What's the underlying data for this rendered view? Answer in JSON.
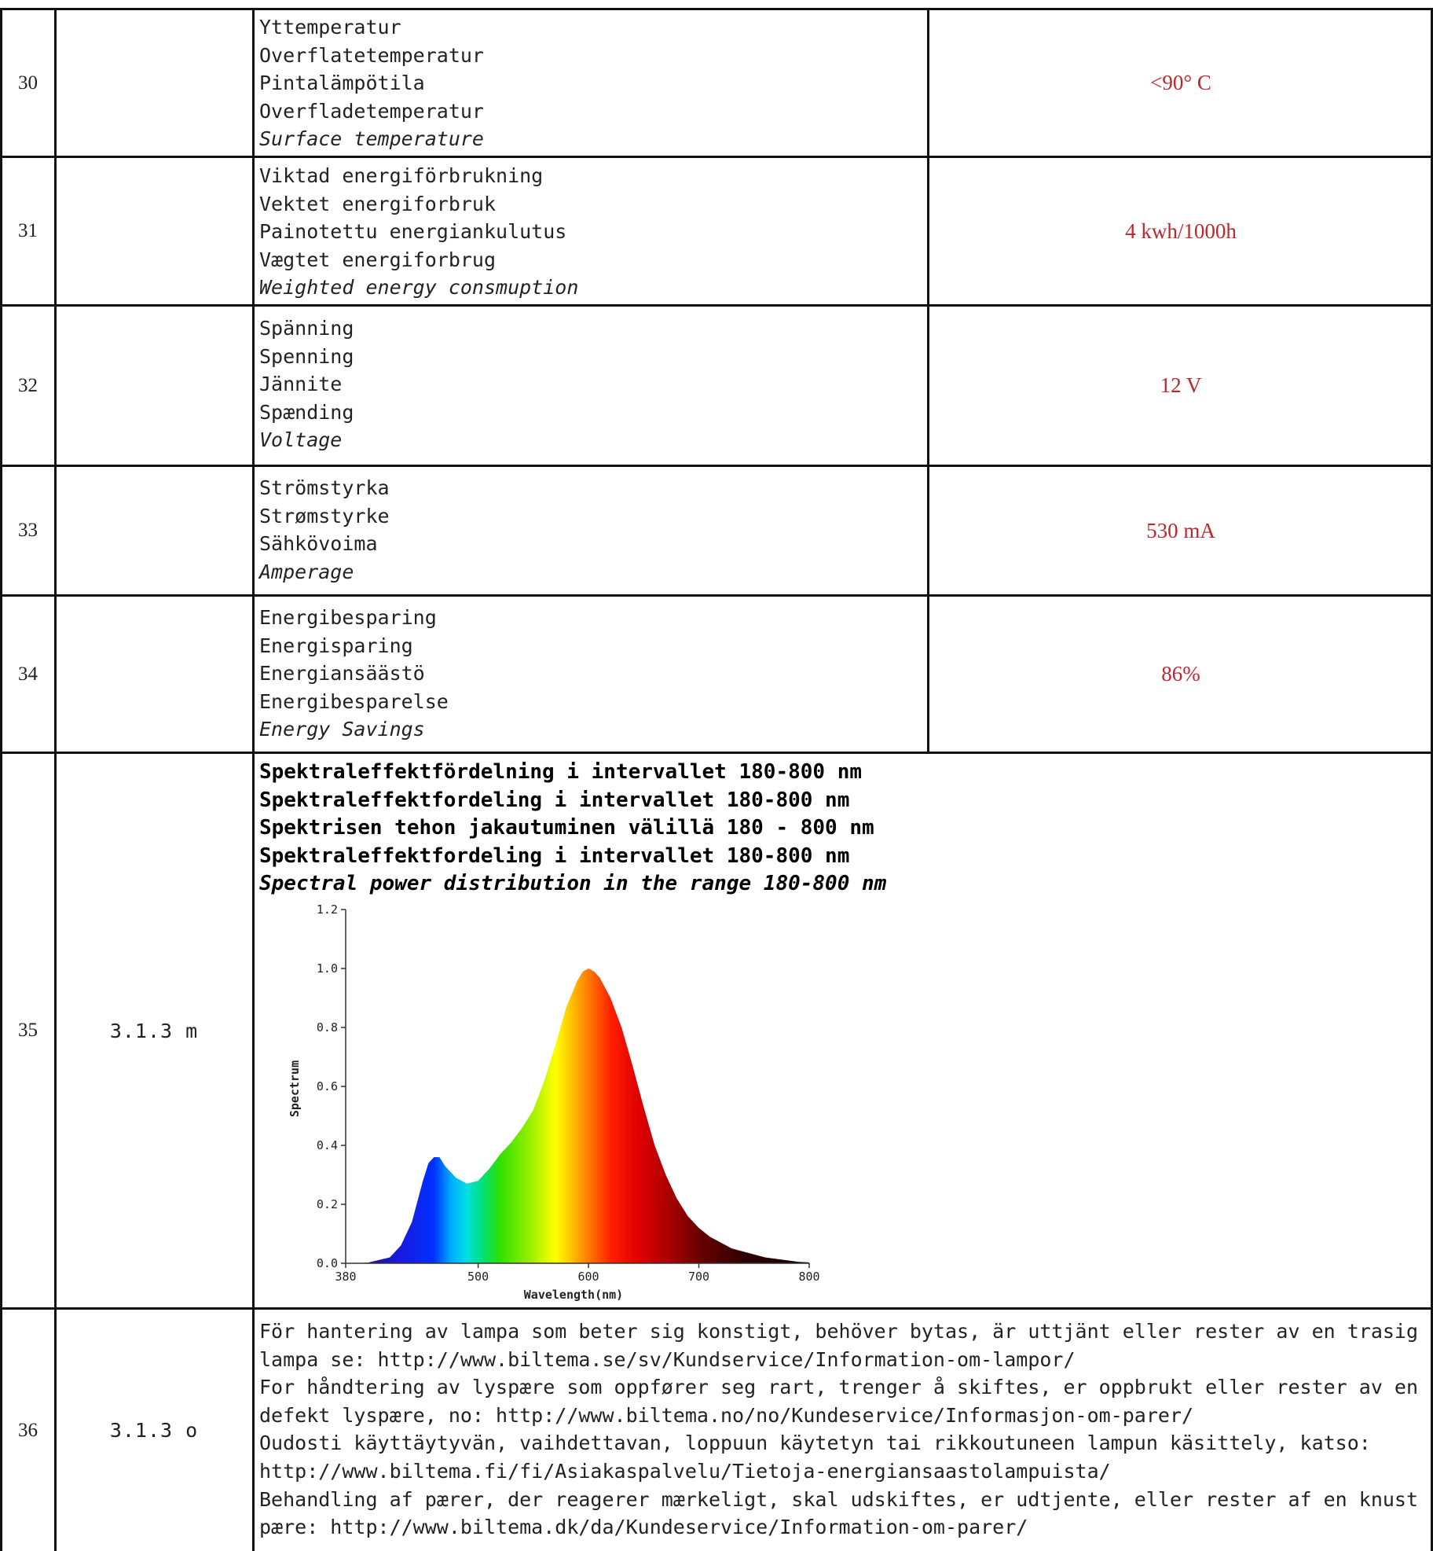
{
  "rows": [
    {
      "number": "30",
      "reference": "",
      "labels": [
        "Yttemperatur",
        "Overflatetemperatur",
        "Pintalämpötila",
        "Overfladetemperatur"
      ],
      "label_en": "Surface temperature",
      "value": "<90° C"
    },
    {
      "number": "31",
      "reference": "",
      "labels": [
        "Viktad energiförbrukning",
        "Vektet energiforbruk",
        "Painotettu energiankulutus",
        "Vægtet energiforbrug"
      ],
      "label_en": "Weighted energy consmuption",
      "value": "4 kwh/1000h"
    },
    {
      "number": "32",
      "reference": "",
      "labels": [
        "Spänning",
        "Spenning",
        "Jännite",
        "Spænding"
      ],
      "label_en": "Voltage",
      "value": "12 V"
    },
    {
      "number": "33",
      "reference": "",
      "labels": [
        "Strömstyrka",
        "Strømstyrke",
        "Sähkövoima"
      ],
      "label_en": "Amperage",
      "value": "530 mA"
    },
    {
      "number": "34",
      "reference": "",
      "labels": [
        "Energibesparing",
        "Energisparing",
        "Energiansäästö",
        "Energibesparelse"
      ],
      "label_en": "Energy Savings",
      "value": "86%"
    }
  ],
  "spectral_row": {
    "number": "35",
    "reference": "3.1.3 m",
    "headings": [
      "Spektraleffektfördelning i intervallet 180-800 nm",
      "Spektraleffektfordeling i intervallet 180-800 nm",
      "Spektrisen tehon jakautuminen välillä 180 - 800 nm",
      "Spektraleffektfordeling i intervallet 180-800 nm"
    ],
    "heading_en": "Spectral power distribution in the range 180-800 nm"
  },
  "disposal_row": {
    "number": "36",
    "reference": "3.1.3 o",
    "lines": [
      "För hantering av lampa som beter sig konstigt, behöver bytas, är uttjänt eller rester av en trasig",
      "lampa se: http://www.biltema.se/sv/Kundservice/Information-om-lampor/",
      "For håndtering av lyspære som oppfører seg rart, trenger å skiftes, er oppbrukt eller rester av en",
      "defekt lyspære, no: http://www.biltema.no/no/Kundeservice/Informasjon-om-parer/",
      "Oudosti käyttäytyvän, vaihdettavan, loppuun käytetyn tai rikkoutuneen lampun käsittely, katso:",
      "http://www.biltema.fi/fi/Asiakaspalvelu/Tietoja-energiansaastolampuista/",
      "Behandling af pærer, der reagerer mærkeligt, skal udskiftes, er udtjente, eller rester af en knust",
      "pære:  http://www.biltema.dk/da/Kundeservice/Information-om-parer/"
    ]
  },
  "colors": {
    "value_text": "#c0262b",
    "grid_line": "#111111"
  },
  "chart_data": {
    "type": "area",
    "xlabel": "Wavelength(nm)",
    "ylabel": "Spectrum",
    "xlim": [
      380,
      800
    ],
    "ylim": [
      0,
      1.2
    ],
    "x_ticks": [
      380,
      500,
      600,
      700,
      800
    ],
    "y_ticks": [
      0.0,
      0.2,
      0.4,
      0.6,
      0.8,
      1.0,
      1.2
    ],
    "x_tick_labels": [
      "380",
      "500",
      "600",
      "700",
      "800"
    ],
    "y_tick_labels": [
      "0.0",
      "0.2",
      "0.4",
      "0.6",
      "0.8",
      "1.0",
      "1.2"
    ],
    "fill": "wavelength-rainbow gradient",
    "grid": false,
    "x": [
      380,
      400,
      420,
      430,
      440,
      450,
      455,
      460,
      465,
      470,
      480,
      490,
      500,
      510,
      520,
      530,
      540,
      550,
      560,
      570,
      580,
      590,
      595,
      600,
      605,
      610,
      620,
      630,
      640,
      650,
      660,
      670,
      680,
      690,
      700,
      710,
      720,
      730,
      740,
      750,
      760,
      770,
      780,
      790,
      800
    ],
    "y": [
      0.0,
      0.002,
      0.02,
      0.06,
      0.14,
      0.28,
      0.34,
      0.36,
      0.36,
      0.33,
      0.29,
      0.27,
      0.28,
      0.32,
      0.37,
      0.41,
      0.46,
      0.52,
      0.62,
      0.74,
      0.87,
      0.96,
      0.99,
      1.0,
      0.99,
      0.97,
      0.9,
      0.8,
      0.67,
      0.53,
      0.4,
      0.3,
      0.22,
      0.16,
      0.12,
      0.09,
      0.07,
      0.05,
      0.04,
      0.03,
      0.02,
      0.015,
      0.01,
      0.005,
      0.003
    ]
  }
}
